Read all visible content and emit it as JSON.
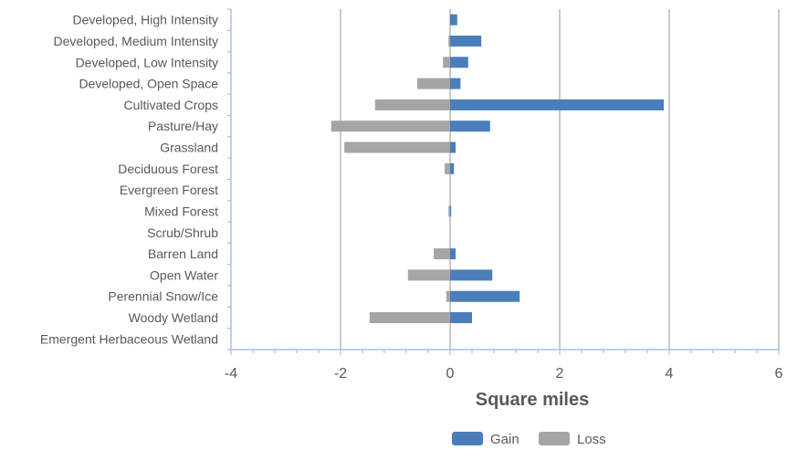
{
  "chart_data": {
    "type": "bar",
    "orientation": "horizontal",
    "categories": [
      "Developed, High Intensity",
      "Developed, Medium Intensity",
      "Developed, Low Intensity",
      "Developed, Open Space",
      "Cultivated Crops",
      "Pasture/Hay",
      "Grassland",
      "Deciduous Forest",
      "Evergreen Forest",
      "Mixed Forest",
      "Scrub/Shrub",
      "Barren Land",
      "Open Water",
      "Perennial Snow/Ice",
      "Woody Wetland",
      "Emergent Herbaceous Wetland"
    ],
    "series": [
      {
        "name": "Gain",
        "color": "#4a7ebb",
        "values": [
          0.13,
          0.57,
          0.33,
          0.19,
          3.9,
          0.73,
          0.1,
          0.07,
          0,
          0.02,
          0,
          0.1,
          0.77,
          1.27,
          0.4,
          0
        ]
      },
      {
        "name": "Loss",
        "color": "#a5a5a5",
        "values": [
          0,
          -0.03,
          -0.13,
          -0.6,
          -1.37,
          -2.17,
          -1.93,
          -0.1,
          0,
          -0.03,
          0,
          -0.3,
          -0.77,
          -0.07,
          -1.47,
          0
        ]
      }
    ],
    "xlabel": "Square miles",
    "ylabel": "",
    "xlim": [
      -4,
      6
    ],
    "xticks": [
      -4,
      -2,
      0,
      2,
      4,
      6
    ],
    "grid": true,
    "legend": "bottom"
  }
}
